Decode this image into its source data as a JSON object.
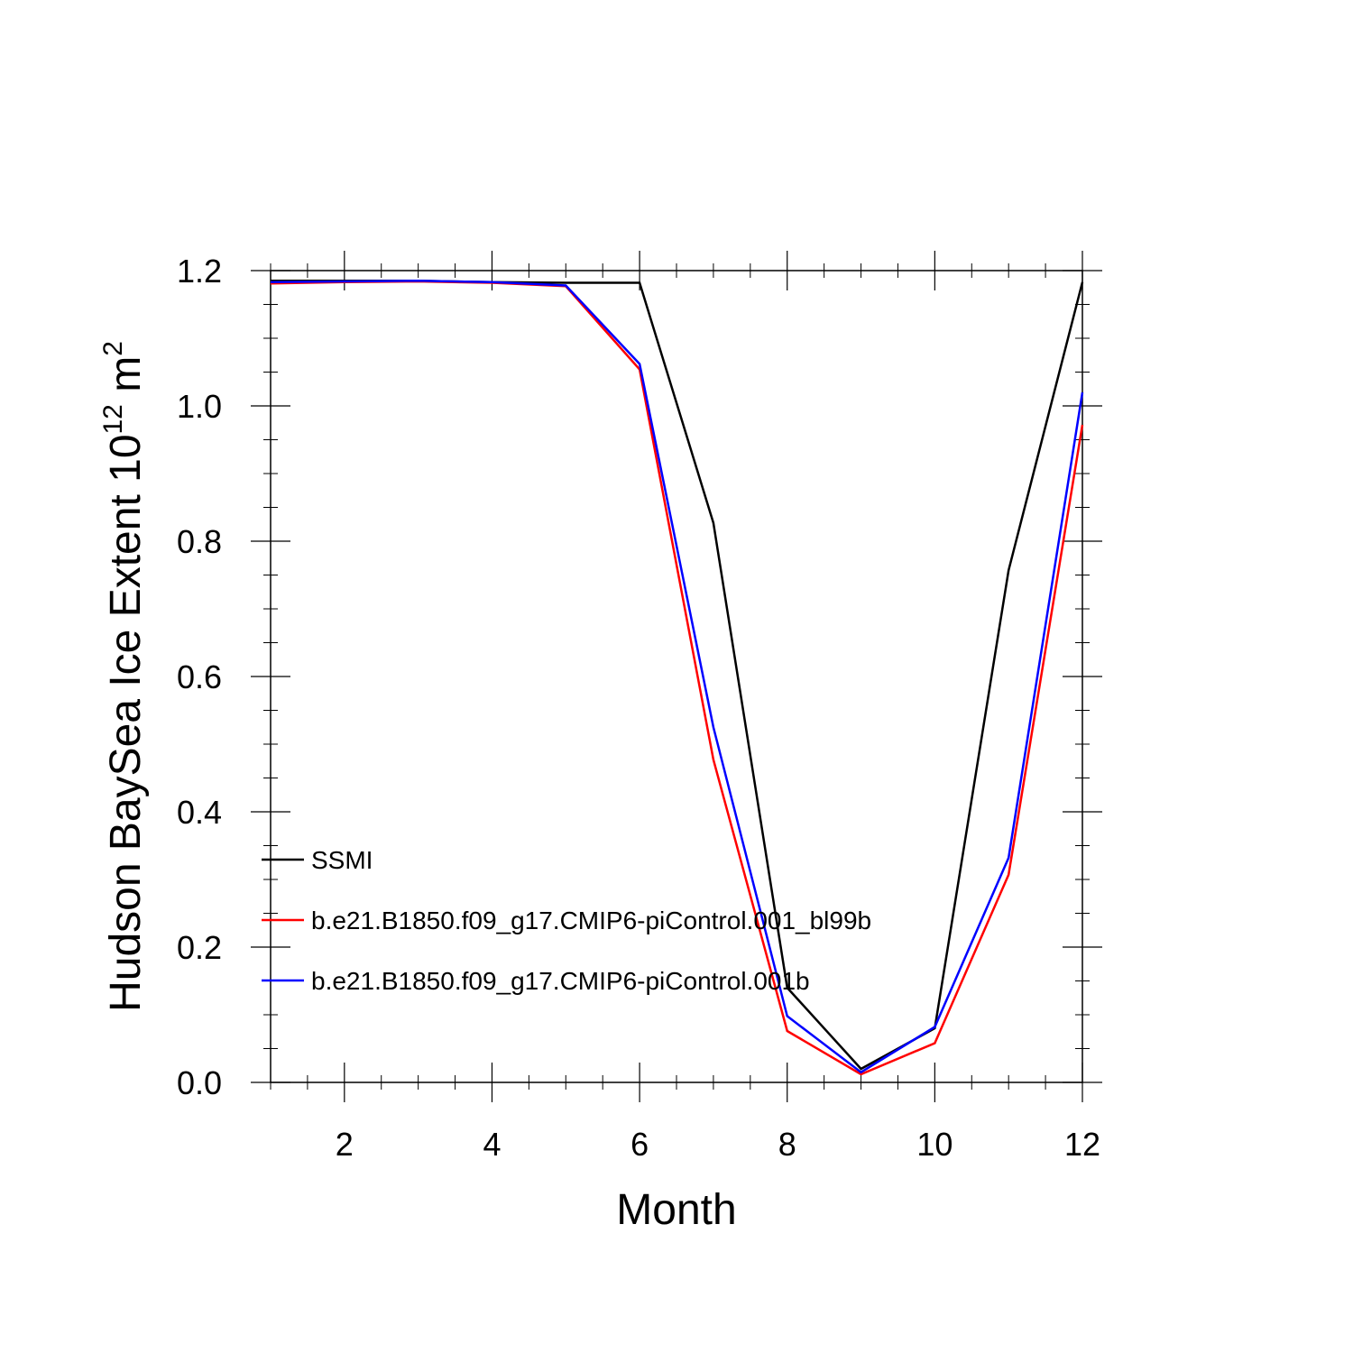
{
  "chart_data": {
    "type": "line",
    "title": "",
    "xlabel": "Month",
    "ylabel": {
      "prefix": "Hudson BaySea Ice Extent 10",
      "superscript": "12",
      "unit": " m",
      "unit_superscript": "2"
    },
    "xlim": [
      1,
      12
    ],
    "ylim": [
      0.0,
      1.2
    ],
    "x": [
      1,
      2,
      3,
      4,
      5,
      6,
      7,
      8,
      9,
      10,
      11,
      12
    ],
    "xticks": [
      2,
      4,
      6,
      8,
      10,
      12
    ],
    "xtick_labels": [
      "2",
      "4",
      "6",
      "8",
      "10",
      "12"
    ],
    "yticks": [
      0.0,
      0.2,
      0.4,
      0.6,
      0.8,
      1.0,
      1.2
    ],
    "ytick_labels": [
      "0.0",
      "0.2",
      "0.4",
      "0.6",
      "0.8",
      "1.0",
      "1.2"
    ],
    "grid": false,
    "legend_position": "lower-left",
    "series": [
      {
        "name": "SSMI",
        "color": "#000000",
        "values": [
          1.185,
          1.185,
          1.185,
          1.183,
          1.182,
          1.182,
          0.827,
          0.14,
          0.02,
          0.08,
          0.757,
          1.183
        ]
      },
      {
        "name": "b.e21.B1850.f09_g17.CMIP6-piControl.001_bl99b",
        "color": "#ff0000",
        "values": [
          1.181,
          1.183,
          1.184,
          1.182,
          1.177,
          1.054,
          0.477,
          0.076,
          0.012,
          0.058,
          0.307,
          0.972
        ]
      },
      {
        "name": "b.e21.B1850.f09_g17.CMIP6-piControl.001b",
        "color": "#0000ff",
        "values": [
          1.183,
          1.184,
          1.185,
          1.183,
          1.178,
          1.062,
          0.525,
          0.098,
          0.015,
          0.082,
          0.332,
          1.02
        ]
      }
    ]
  }
}
